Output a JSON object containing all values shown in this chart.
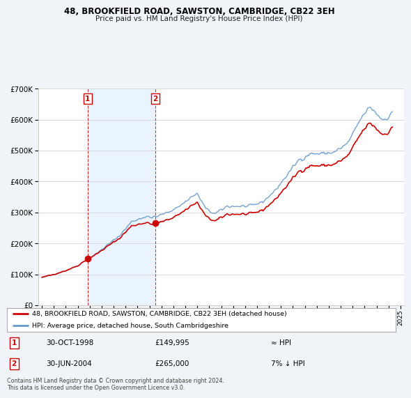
{
  "title": "48, BROOKFIELD ROAD, SAWSTON, CAMBRIDGE, CB22 3EH",
  "subtitle": "Price paid vs. HM Land Registry's House Price Index (HPI)",
  "legend_line1": "48, BROOKFIELD ROAD, SAWSTON, CAMBRIDGE, CB22 3EH (detached house)",
  "legend_line2": "HPI: Average price, detached house, South Cambridgeshire",
  "footer": "Contains HM Land Registry data © Crown copyright and database right 2024.\nThis data is licensed under the Open Government Licence v3.0.",
  "sale1_label": "1",
  "sale1_date": "30-OCT-1998",
  "sale1_price": "£149,995",
  "sale1_vs": "≈ HPI",
  "sale2_label": "2",
  "sale2_date": "30-JUN-2004",
  "sale2_price": "£265,000",
  "sale2_vs": "7% ↓ HPI",
  "sale1_marker_x": 1998.83,
  "sale1_marker_y": 149995,
  "sale2_marker_x": 2004.5,
  "sale2_marker_y": 265000,
  "vline1_x": 1998.83,
  "vline2_x": 2004.5,
  "red_color": "#cc0000",
  "blue_color": "#6699cc",
  "shade_color": "#ddeeff",
  "background_color": "#f0f4f8",
  "plot_bg_color": "#ffffff",
  "ylim": [
    0,
    700000
  ],
  "ytick_step": 100000,
  "xlim_start": 1994.7,
  "xlim_end": 2025.3
}
